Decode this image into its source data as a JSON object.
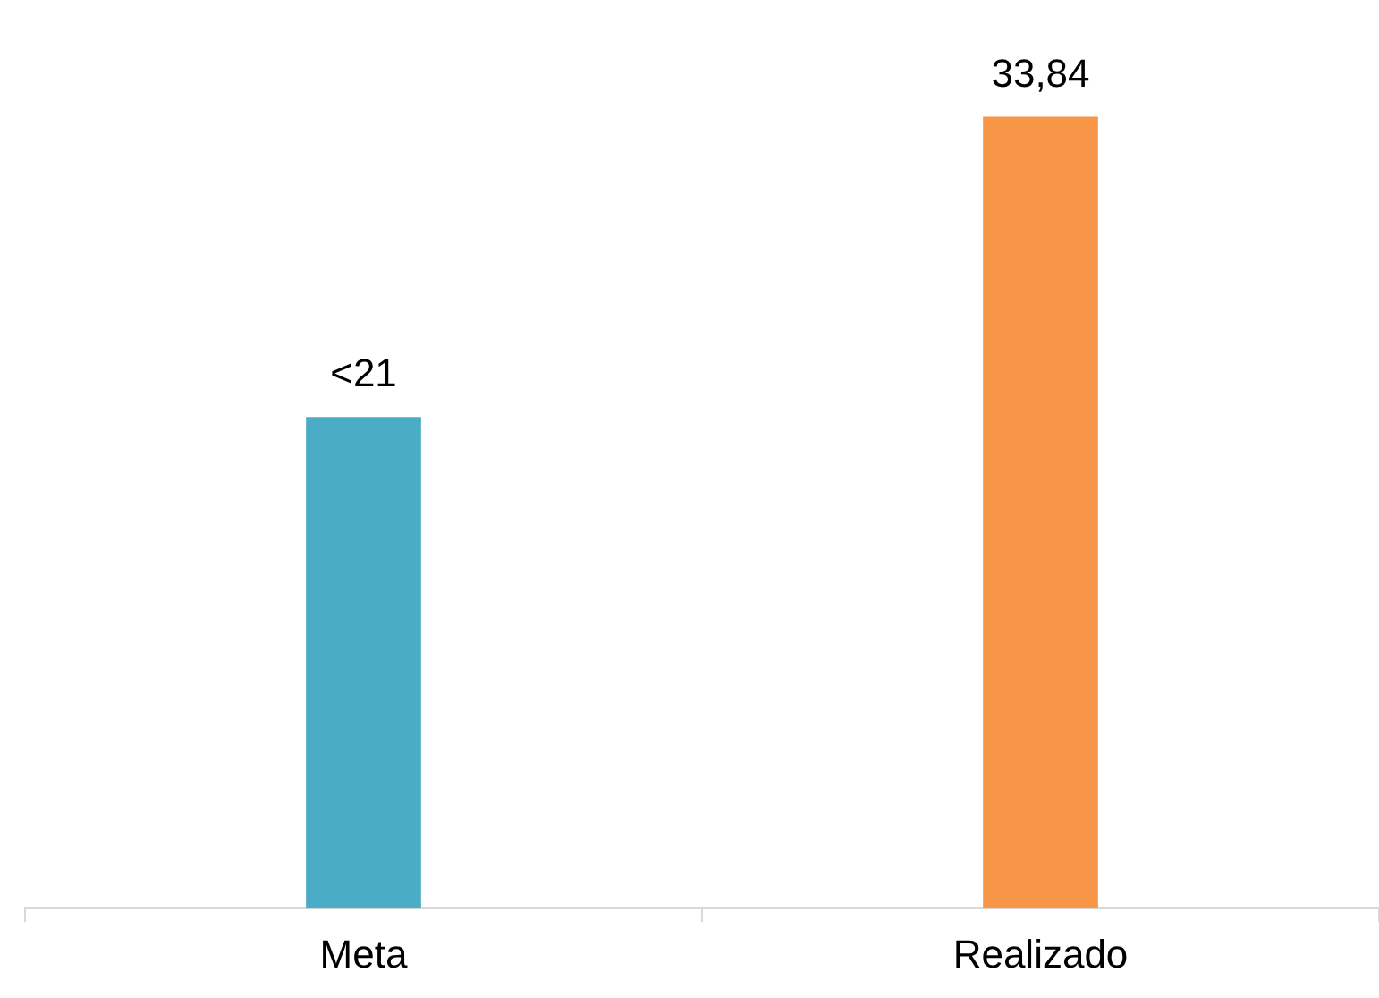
{
  "chart_data": {
    "type": "bar",
    "categories": [
      "Meta",
      "Realizado"
    ],
    "values": [
      21,
      33.84
    ],
    "colors": [
      "#4bacc6",
      "#f79646"
    ],
    "value_labels": [
      "<21",
      "33,84"
    ],
    "grid": false,
    "legend": false
  }
}
